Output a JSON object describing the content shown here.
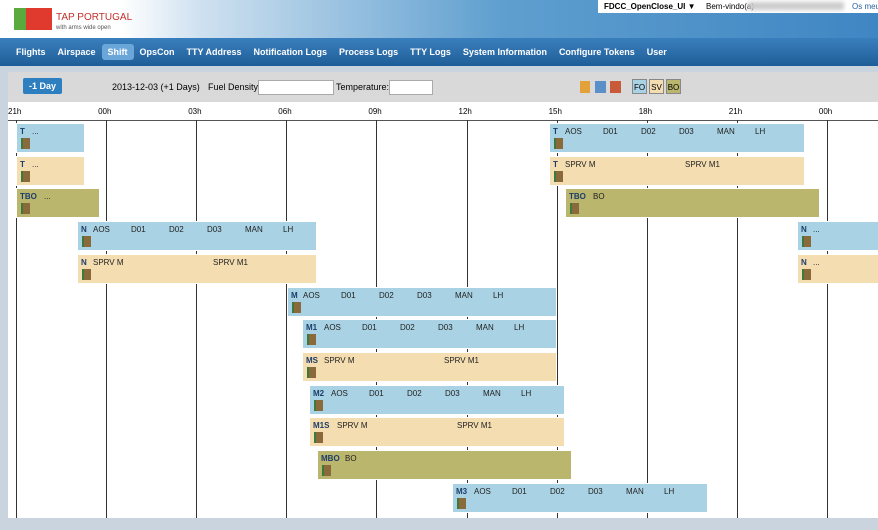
{
  "header": {
    "brand": "TAP PORTUGAL",
    "tagline": "with arms wide open",
    "app": "FDCC_OpenClose_UI ▼",
    "welcome": "Bem-vindo(a)",
    "link": "Os meu"
  },
  "nav": [
    "Flights",
    "Airspace",
    "Shift",
    "OpsCon",
    "TTY Address",
    "Notification Logs",
    "Process Logs",
    "TTY Logs",
    "System Information",
    "Configure Tokens",
    "User"
  ],
  "toolbar": {
    "button": "-1 Day",
    "date": "2013-12-03 (+1 Days)",
    "fuel": "Fuel Density:",
    "temperature": "Temperature:",
    "filters": [
      {
        "label": "FO",
        "color": "#a9d3e4"
      },
      {
        "label": "SV",
        "color": "#f4ddb0"
      },
      {
        "label": "BO",
        "color": "#bbb66e"
      }
    ]
  },
  "hours": [
    "21h",
    "00h",
    "03h",
    "06h",
    "09h",
    "12h",
    "15h",
    "18h",
    "21h",
    "00h"
  ],
  "shifts": [
    {
      "code": "T",
      "labels": [
        "..."
      ],
      "color": "#a9d3e4"
    },
    {
      "code": "T",
      "labels": [
        "AOS",
        "D01",
        "D02",
        "D03",
        "MAN",
        "LH"
      ],
      "color": "#a9d3e4"
    },
    {
      "code": "T",
      "labels": [
        "..."
      ],
      "color": "#f4ddb0"
    },
    {
      "code": "T",
      "labels": [
        "SPRV M",
        "SPRV M1"
      ],
      "color": "#f4ddb0"
    },
    {
      "code": "TBO",
      "labels": [
        "..."
      ],
      "color": "#bbb66e"
    },
    {
      "code": "TBO",
      "labels": [
        "BO"
      ],
      "color": "#bbb66e"
    },
    {
      "code": "N",
      "labels": [
        "AOS",
        "D01",
        "D02",
        "D03",
        "MAN",
        "LH"
      ],
      "color": "#a9d3e4"
    },
    {
      "code": "N",
      "labels": [
        "..."
      ],
      "color": "#a9d3e4"
    },
    {
      "code": "N",
      "labels": [
        "SPRV M",
        "SPRV M1"
      ],
      "color": "#f4ddb0"
    },
    {
      "code": "N",
      "labels": [
        "..."
      ],
      "color": "#f4ddb0"
    },
    {
      "code": "M",
      "labels": [
        "AOS",
        "D01",
        "D02",
        "D03",
        "MAN",
        "LH"
      ],
      "color": "#a9d3e4"
    },
    {
      "code": "M1",
      "labels": [
        "AOS",
        "D01",
        "D02",
        "D03",
        "MAN",
        "LH"
      ],
      "color": "#a9d3e4"
    },
    {
      "code": "MS",
      "labels": [
        "SPRV M",
        "SPRV M1"
      ],
      "color": "#f4ddb0"
    },
    {
      "code": "M2",
      "labels": [
        "AOS",
        "D01",
        "D02",
        "D03",
        "MAN",
        "LH"
      ],
      "color": "#a9d3e4"
    },
    {
      "code": "M1S",
      "labels": [
        "SPRV M",
        "SPRV M1"
      ],
      "color": "#f4ddb0"
    },
    {
      "code": "MBO",
      "labels": [
        "BO"
      ],
      "color": "#bbb66e"
    },
    {
      "code": "M3",
      "labels": [
        "AOS",
        "D01",
        "D02",
        "D03",
        "MAN",
        "LH"
      ],
      "color": "#a9d3e4"
    }
  ]
}
